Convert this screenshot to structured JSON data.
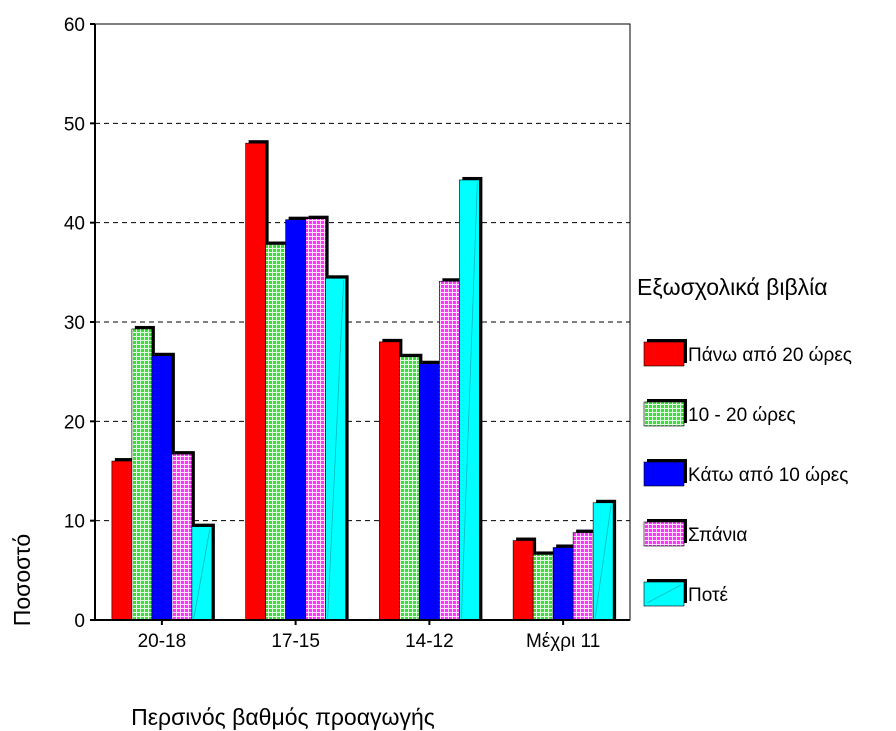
{
  "chart_data": {
    "type": "bar",
    "title": "",
    "xlabel": "Περσινός βαθμός προαγωγής",
    "ylabel": "Ποσοστό",
    "ylim": [
      0,
      60
    ],
    "yticks": [
      0,
      10,
      20,
      30,
      40,
      50,
      60
    ],
    "grid": "horizontal dashed",
    "categories": [
      "20-18",
      "17-15",
      "14-12",
      "Μέχρι 11"
    ],
    "legend": {
      "title": "Εξωσχολικά βιβλία",
      "placement": "right"
    },
    "series": [
      {
        "name": "Πάνω από 20 ώρες",
        "color": "#ff0000",
        "pattern": "solid",
        "values": [
          16,
          48,
          28,
          8
        ]
      },
      {
        "name": "10 - 20 ώρες",
        "color": "#3cdc3c",
        "pattern": "grid",
        "values": [
          29.3,
          37.8,
          26.5,
          6.6
        ]
      },
      {
        "name": "Κάτω από 10 ώρες",
        "color": "#0000ff",
        "pattern": "solid",
        "values": [
          26.6,
          40.3,
          25.8,
          7.3
        ]
      },
      {
        "name": "Σπάνια",
        "color": "#ff33ff",
        "pattern": "grid",
        "values": [
          16.7,
          40.4,
          34.1,
          8.8
        ]
      },
      {
        "name": "Ποτέ",
        "color": "#00ffff",
        "pattern": "solid",
        "values": [
          9.4,
          34.4,
          44.3,
          11.8
        ]
      }
    ]
  }
}
